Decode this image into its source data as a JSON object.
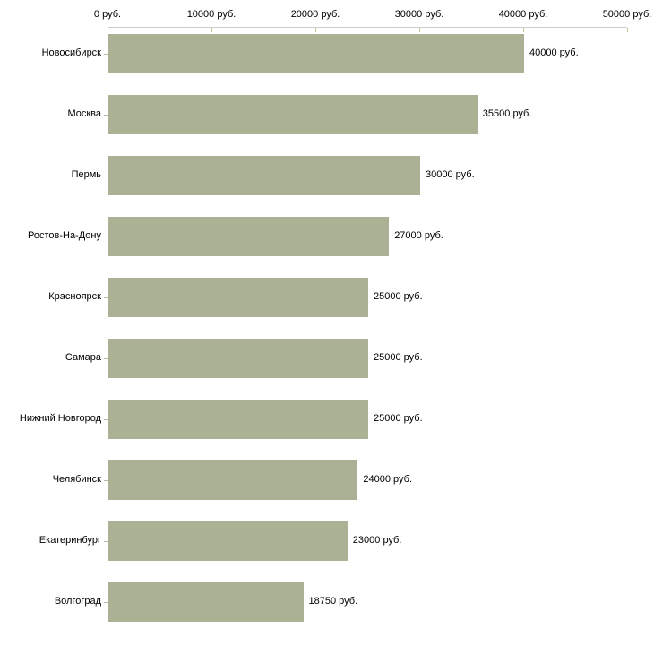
{
  "chart_data": {
    "type": "bar",
    "orientation": "horizontal",
    "title": "",
    "xlabel": "",
    "ylabel": "",
    "grid": false,
    "legend": false,
    "categories": [
      "Новосибирск",
      "Москва",
      "Пермь",
      "Ростов-На-Дону",
      "Красноярск",
      "Самара",
      "Нижний Новгород",
      "Челябинск",
      "Екатеринбург",
      "Волгоград"
    ],
    "values": [
      40000,
      35500,
      30000,
      27000,
      25000,
      25000,
      25000,
      24000,
      23000,
      18750
    ],
    "value_labels": [
      "40000 руб.",
      "35500 руб.",
      "30000 руб.",
      "27000 руб.",
      "25000 руб.",
      "25000 руб.",
      "25000 руб.",
      "24000 руб.",
      "23000 руб.",
      "18750 руб."
    ],
    "x_axis": {
      "position": "top",
      "range": [
        0,
        50000
      ],
      "ticks": [
        0,
        10000,
        20000,
        30000,
        40000,
        50000
      ],
      "tick_labels": [
        "0 руб.",
        "10000 руб.",
        "20000 руб.",
        "30000 руб.",
        "40000 руб.",
        "50000 руб."
      ]
    },
    "colors": {
      "bar": "#abb194",
      "axis_line": "#ccccc4",
      "x_tick": "#bfc29a",
      "y_tick": "#b5b8a0",
      "text": "#000000",
      "background": "#ffffff"
    }
  }
}
